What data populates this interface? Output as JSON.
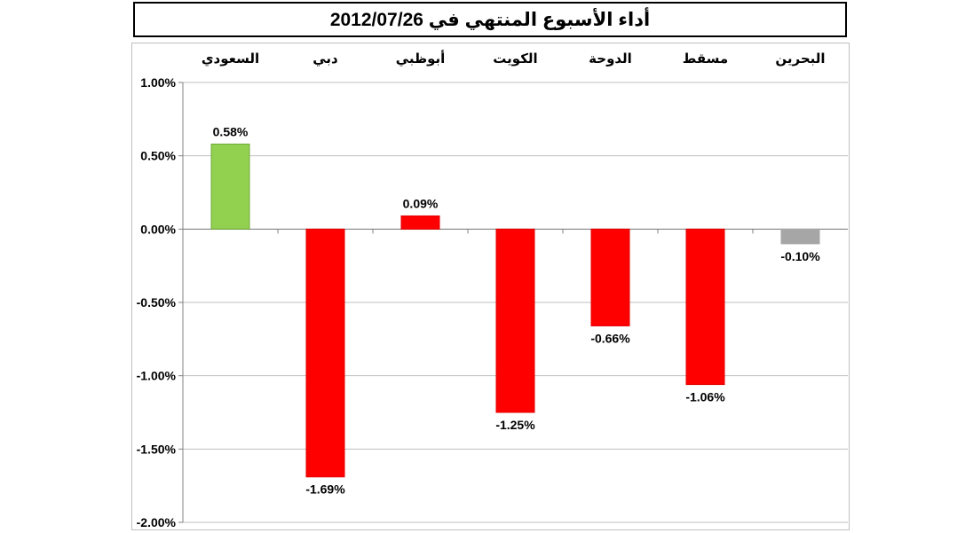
{
  "chart_data": {
    "type": "bar",
    "title": "أداء الأسبوع المنتهي في 2012/07/26",
    "categories": [
      "السعودي",
      "دبي",
      "أبوظبي",
      "الكويت",
      "الدوحة",
      "مسقط",
      "البحرين"
    ],
    "values": [
      0.58,
      -1.69,
      0.09,
      -1.25,
      -0.66,
      -1.06,
      -0.1
    ],
    "value_labels": [
      "0.58%",
      "-1.69%",
      "0.09%",
      "-1.25%",
      "-0.66%",
      "-1.06%",
      "-0.10%"
    ],
    "bar_colors": [
      "#92d050",
      "#ff0000",
      "#ff0000",
      "#ff0000",
      "#ff0000",
      "#ff0000",
      "#a6a6a6"
    ],
    "ylim": [
      -2.0,
      1.0
    ],
    "yticks": [
      1.0,
      0.5,
      0.0,
      -0.5,
      -1.0,
      -1.5,
      -2.0
    ],
    "ytick_labels": [
      "1.00%",
      "0.50%",
      "0.00%",
      "-0.50%",
      "-1.00%",
      "-1.50%",
      "-2.00%"
    ],
    "category_axis_position": "top",
    "grid": true,
    "xlabel": "",
    "ylabel": ""
  }
}
